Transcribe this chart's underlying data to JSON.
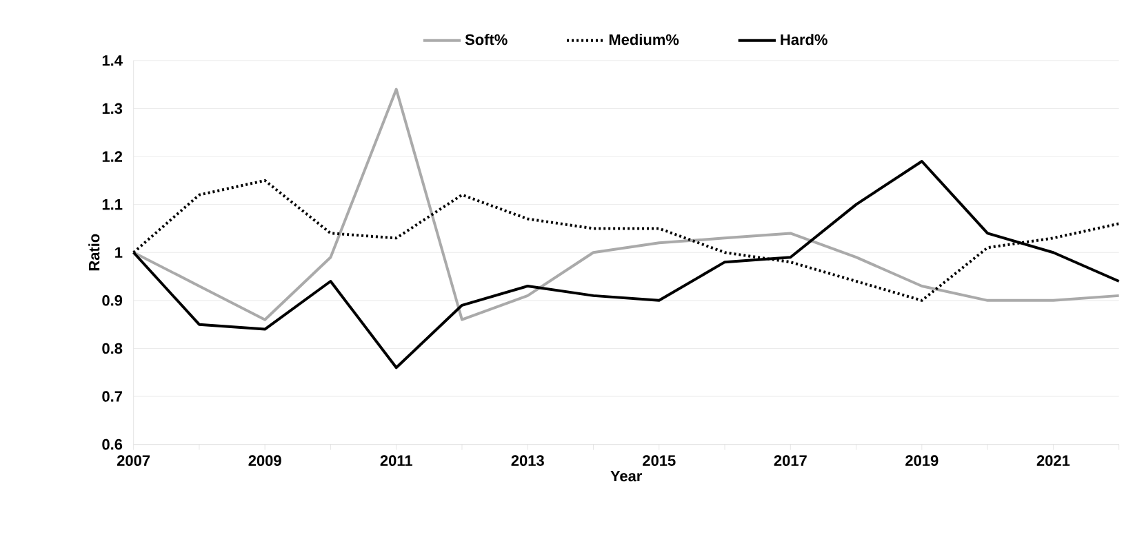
{
  "chart_data": {
    "type": "line",
    "xlabel": "Year",
    "ylabel": "Ratio",
    "x": [
      2007,
      2008,
      2009,
      2010,
      2011,
      2012,
      2013,
      2014,
      2015,
      2016,
      2017,
      2018,
      2019,
      2020,
      2021,
      2022
    ],
    "series": [
      {
        "name": "Soft%",
        "color": "#aaaaaa",
        "line_style": "solid",
        "values": [
          1.0,
          0.93,
          0.86,
          0.99,
          1.34,
          0.86,
          0.91,
          1.0,
          1.02,
          1.03,
          1.04,
          0.99,
          0.93,
          0.9,
          0.9,
          0.91
        ]
      },
      {
        "name": "Medium%",
        "color": "#000000",
        "line_style": "dotted",
        "values": [
          1.0,
          1.12,
          1.15,
          1.04,
          1.03,
          1.12,
          1.07,
          1.05,
          1.05,
          1.0,
          0.98,
          0.94,
          0.9,
          1.01,
          1.03,
          1.06
        ]
      },
      {
        "name": "Hard%",
        "color": "#000000",
        "line_style": "solid",
        "values": [
          1.0,
          0.85,
          0.84,
          0.94,
          0.76,
          0.89,
          0.93,
          0.91,
          0.9,
          0.98,
          0.99,
          1.1,
          1.19,
          1.04,
          1.0,
          0.94
        ]
      }
    ],
    "xlim": [
      2007,
      2022
    ],
    "xticks": [
      2007,
      {
        "value": 2008,
        "label": null
      },
      2009,
      {
        "value": 2010,
        "label": null
      },
      2011,
      {
        "value": 2012,
        "label": null
      },
      2013,
      {
        "value": 2014,
        "label": null
      },
      2015,
      {
        "value": 2016,
        "label": null
      },
      2017,
      {
        "value": 2018,
        "label": null
      },
      2019,
      {
        "value": 2020,
        "label": null
      },
      2021,
      {
        "value": 2022,
        "label": null
      }
    ],
    "ylim": [
      0.6,
      1.4
    ],
    "yticks": [
      0.6,
      0.7,
      0.8,
      0.9,
      1,
      1.1,
      1.2,
      1.3,
      1.4
    ],
    "grid": "y",
    "legend": "top",
    "marker": "none"
  }
}
